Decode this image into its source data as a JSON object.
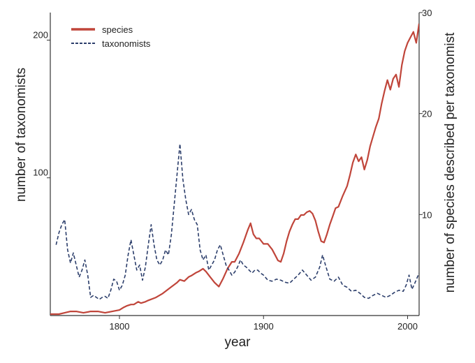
{
  "chart_data": {
    "type": "line",
    "xlabel": "year",
    "ylabel_left": "number of taxonomists",
    "ylabel_right": "number of species described per taxonomist",
    "xlim": [
      1752,
      2008
    ],
    "ylim_left": [
      0,
      220
    ],
    "ylim_right": [
      0,
      30
    ],
    "x_ticks": [
      1800,
      1900,
      2000
    ],
    "y_left_ticks": [
      100,
      200
    ],
    "y_right_ticks": [
      10,
      20,
      30
    ],
    "legend_position": "top-left",
    "colors": {
      "species": "#c0453a",
      "taxonomists": "#2c3e6b"
    },
    "series": [
      {
        "name": "species",
        "axis": "left",
        "style": "solid",
        "x": [
          1752,
          1758,
          1762,
          1766,
          1770,
          1775,
          1780,
          1785,
          1790,
          1795,
          1800,
          1803,
          1805,
          1808,
          1810,
          1813,
          1815,
          1818,
          1820,
          1825,
          1830,
          1835,
          1840,
          1842,
          1845,
          1848,
          1850,
          1853,
          1855,
          1858,
          1860,
          1863,
          1866,
          1869,
          1872,
          1875,
          1878,
          1880,
          1883,
          1886,
          1889,
          1891,
          1893,
          1895,
          1897,
          1900,
          1903,
          1906,
          1908,
          1910,
          1912,
          1914,
          1916,
          1918,
          1920,
          1922,
          1924,
          1926,
          1928,
          1930,
          1932,
          1934,
          1936,
          1938,
          1940,
          1942,
          1944,
          1946,
          1948,
          1950,
          1952,
          1955,
          1958,
          1960,
          1962,
          1964,
          1966,
          1968,
          1970,
          1972,
          1974,
          1976,
          1978,
          1980,
          1982,
          1984,
          1986,
          1988,
          1990,
          1992,
          1994,
          1996,
          1998,
          2000,
          2002,
          2004,
          2006,
          2008
        ],
        "values": [
          1,
          1,
          2,
          3,
          3,
          2,
          3,
          3,
          2,
          3,
          4,
          6,
          7,
          8,
          8,
          10,
          9,
          10,
          11,
          13,
          16,
          20,
          24,
          26,
          25,
          28,
          29,
          31,
          32,
          34,
          32,
          28,
          24,
          21,
          27,
          34,
          39,
          39,
          45,
          53,
          62,
          67,
          59,
          56,
          56,
          52,
          52,
          48,
          44,
          40,
          39,
          45,
          54,
          61,
          66,
          70,
          70,
          73,
          73,
          75,
          76,
          74,
          69,
          61,
          54,
          53,
          59,
          66,
          72,
          78,
          79,
          87,
          94,
          102,
          111,
          117,
          112,
          115,
          106,
          113,
          123,
          130,
          137,
          143,
          154,
          163,
          171,
          164,
          172,
          175,
          166,
          182,
          192,
          198,
          202,
          206,
          198,
          212
        ]
      },
      {
        "name": "taxonomists",
        "axis": "right",
        "style": "dashed",
        "x": [
          1756,
          1758,
          1760,
          1762,
          1764,
          1766,
          1768,
          1770,
          1772,
          1774,
          1776,
          1778,
          1780,
          1782,
          1784,
          1786,
          1788,
          1790,
          1792,
          1794,
          1796,
          1798,
          1800,
          1802,
          1804,
          1806,
          1808,
          1810,
          1812,
          1814,
          1816,
          1818,
          1820,
          1822,
          1824,
          1826,
          1828,
          1830,
          1832,
          1834,
          1836,
          1838,
          1840,
          1842,
          1844,
          1846,
          1848,
          1850,
          1852,
          1854,
          1856,
          1858,
          1860,
          1862,
          1864,
          1866,
          1868,
          1870,
          1872,
          1874,
          1876,
          1878,
          1880,
          1882,
          1884,
          1886,
          1888,
          1890,
          1892,
          1894,
          1896,
          1898,
          1900,
          1903,
          1906,
          1909,
          1912,
          1915,
          1918,
          1921,
          1924,
          1927,
          1930,
          1933,
          1936,
          1939,
          1941,
          1943,
          1946,
          1949,
          1952,
          1955,
          1958,
          1961,
          1964,
          1967,
          1970,
          1973,
          1976,
          1979,
          1982,
          1985,
          1988,
          1991,
          1994,
          1997,
          1999,
          2001,
          2003,
          2005,
          2008
        ],
        "values": [
          7.0,
          8.2,
          9.0,
          9.5,
          6.5,
          5.2,
          6.2,
          5.0,
          3.8,
          4.5,
          5.5,
          4.0,
          1.8,
          2.0,
          1.8,
          1.6,
          1.8,
          1.9,
          1.7,
          2.5,
          3.6,
          3.4,
          2.5,
          3.0,
          4.0,
          6.0,
          7.5,
          6.0,
          4.5,
          5.0,
          3.5,
          4.8,
          7.0,
          9.0,
          7.0,
          5.5,
          5.0,
          5.5,
          6.5,
          6.0,
          8.0,
          11.0,
          14.0,
          17.0,
          13.5,
          11.5,
          10.0,
          10.5,
          9.5,
          9.0,
          6.5,
          5.5,
          6.0,
          4.5,
          5.0,
          5.5,
          6.5,
          7.0,
          6.0,
          5.0,
          4.5,
          4.0,
          4.3,
          4.8,
          5.5,
          5.0,
          4.8,
          4.5,
          4.2,
          4.5,
          4.5,
          4.2,
          4.0,
          3.5,
          3.4,
          3.6,
          3.5,
          3.3,
          3.2,
          3.6,
          4.0,
          4.5,
          4.0,
          3.5,
          3.8,
          4.8,
          6.0,
          5.0,
          3.6,
          3.4,
          3.8,
          3.0,
          2.8,
          2.4,
          2.5,
          2.2,
          1.8,
          1.7,
          2.0,
          2.2,
          2.0,
          1.8,
          2.0,
          2.3,
          2.5,
          2.4,
          3.0,
          4.0,
          2.6,
          3.2,
          4.2
        ]
      }
    ]
  }
}
